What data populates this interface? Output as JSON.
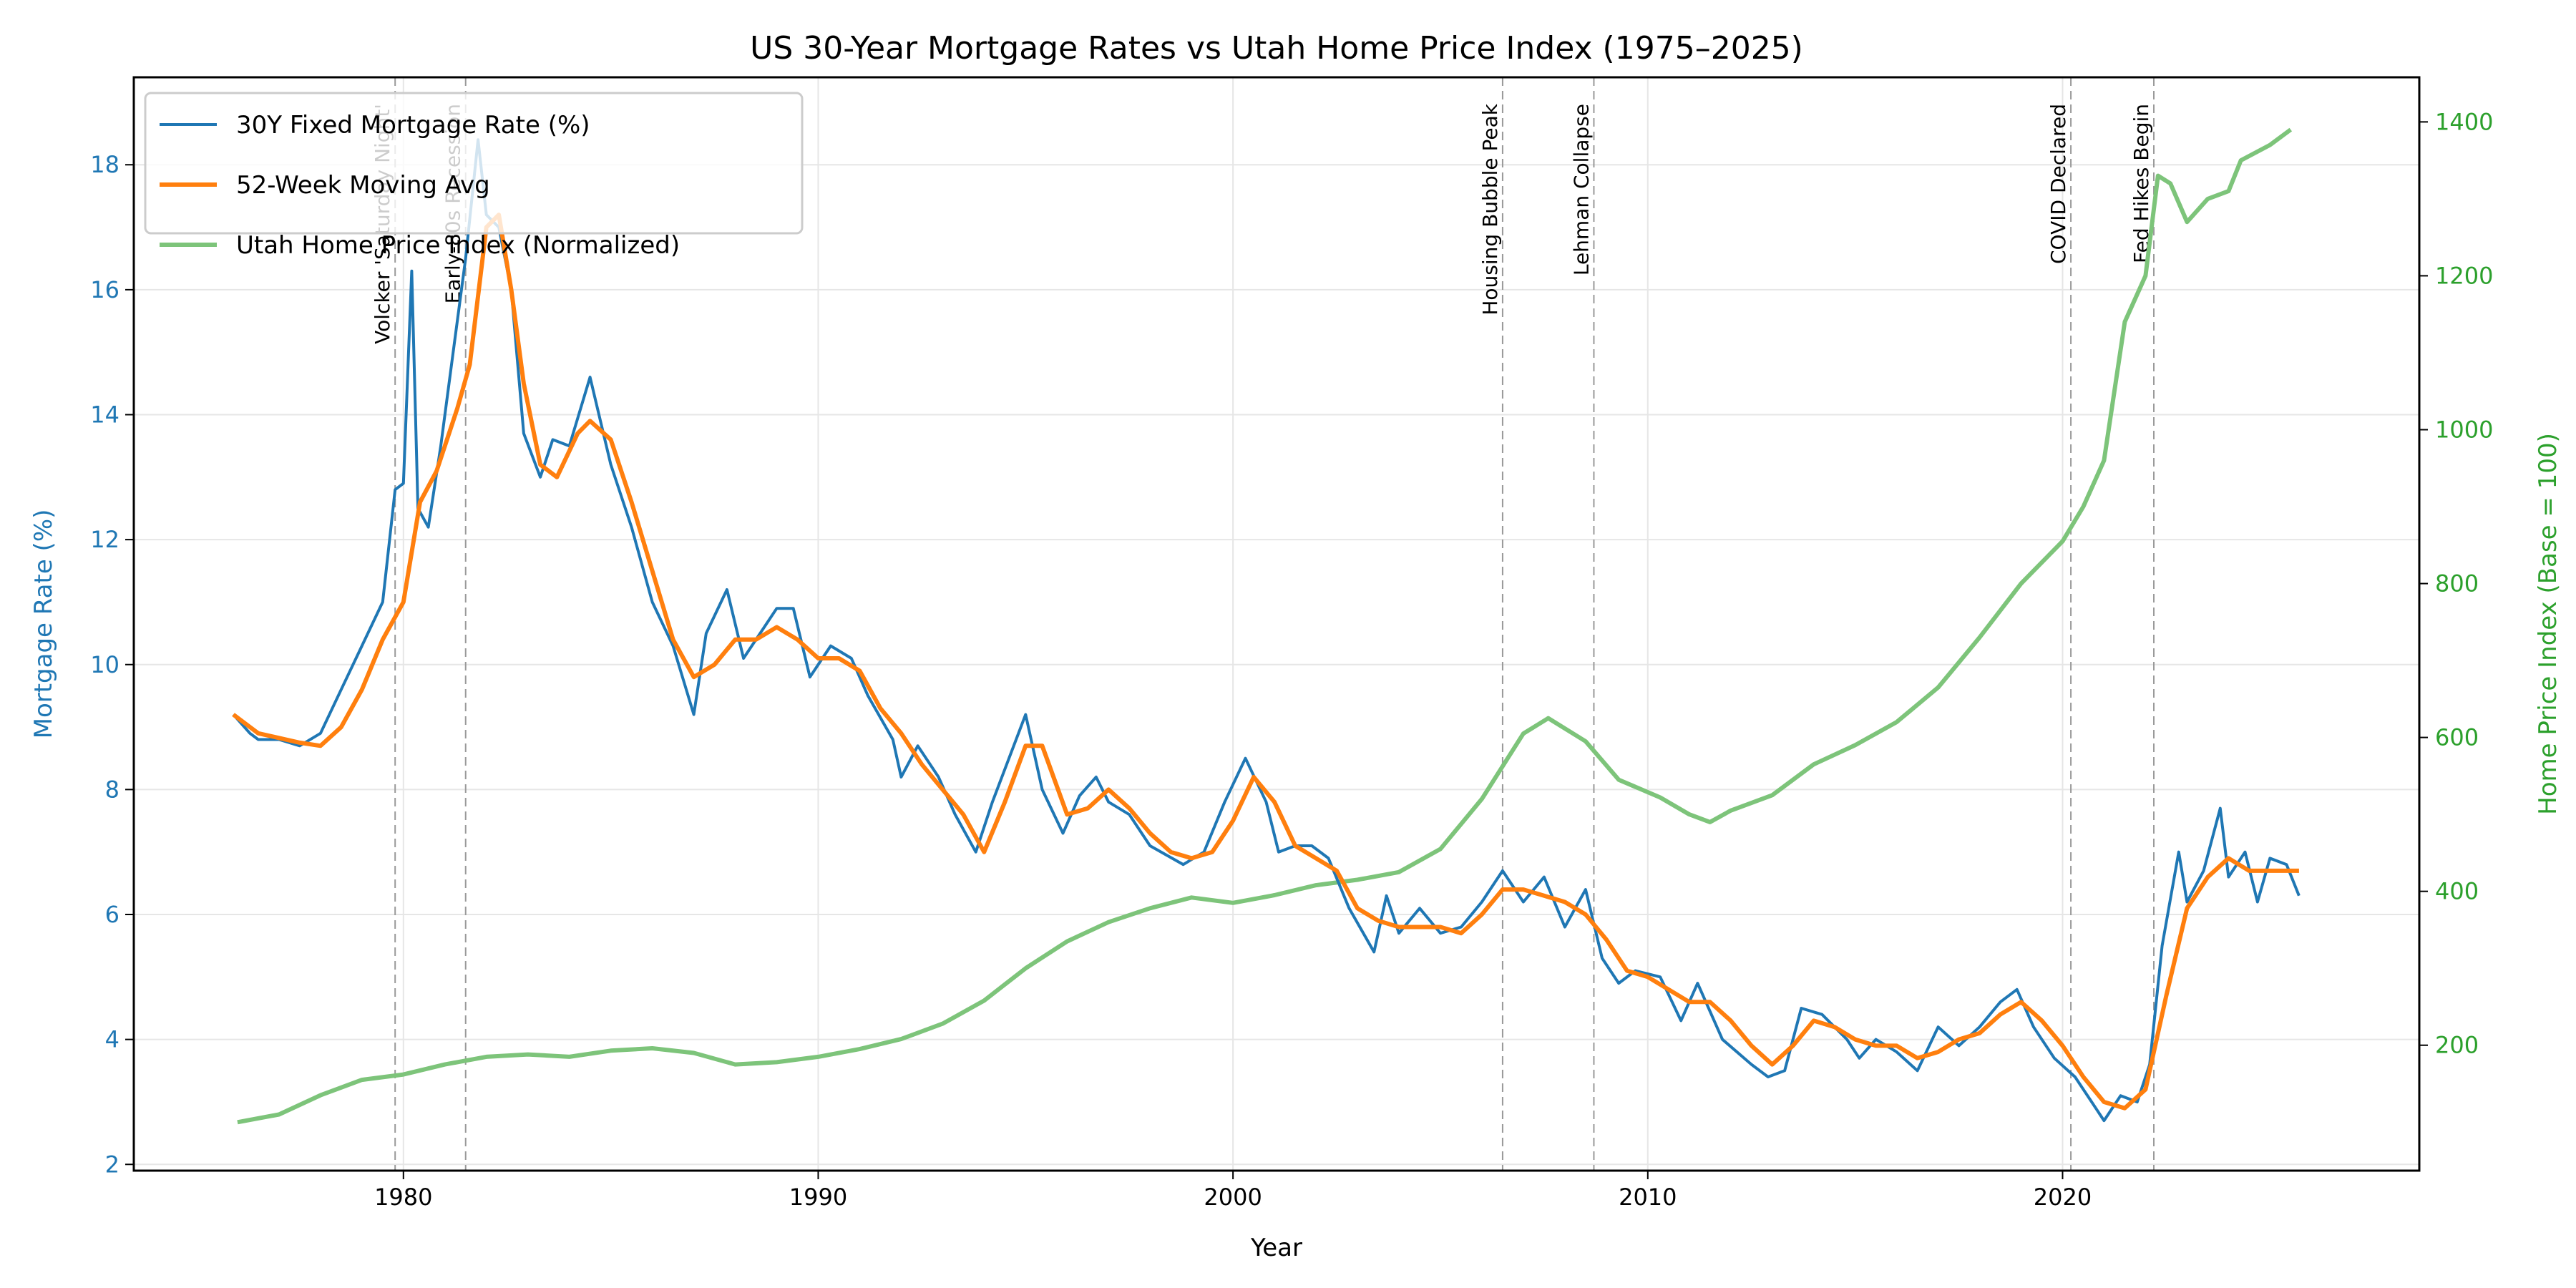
{
  "chart_data": {
    "type": "line",
    "title": "US 30-Year Mortgage Rates vs Utah Home Price Index (1975–2025)",
    "xlabel": "Year",
    "ylabel": "Mortgage Rate (%)",
    "y2label": "Home Price Index (Base = 100)",
    "xlim": [
      1973.5,
      2028.6
    ],
    "ylim": [
      1.9,
      19.4
    ],
    "y2lim": [
      37,
      1458
    ],
    "xticks": [
      1980,
      1990,
      2000,
      2010,
      2020
    ],
    "yticks": [
      2,
      4,
      6,
      8,
      10,
      12,
      14,
      16,
      18
    ],
    "y2ticks": [
      200,
      400,
      600,
      800,
      1000,
      1200,
      1400
    ],
    "grid": true,
    "legend_position": "top-left",
    "colors": {
      "rate": "#1f77b4",
      "ma": "#ff7f0e",
      "hpi": "#7dc47a",
      "left_axis": "#1f77b4",
      "right_axis": "#2ca02c",
      "event": "#999999"
    },
    "series": [
      {
        "name": "30Y Fixed Mortgage Rate (%)",
        "axis": "left",
        "points": [
          [
            1975.9,
            9.2
          ],
          [
            1976.3,
            8.9
          ],
          [
            1976.5,
            8.8
          ],
          [
            1977,
            8.8
          ],
          [
            1977.5,
            8.7
          ],
          [
            1978,
            8.9
          ],
          [
            1978.5,
            9.6
          ],
          [
            1979,
            10.3
          ],
          [
            1979.5,
            11.0
          ],
          [
            1979.8,
            12.8
          ],
          [
            1980.0,
            12.9
          ],
          [
            1980.2,
            16.3
          ],
          [
            1980.35,
            12.5
          ],
          [
            1980.6,
            12.2
          ],
          [
            1980.9,
            13.5
          ],
          [
            1981.2,
            15.0
          ],
          [
            1981.5,
            16.5
          ],
          [
            1981.8,
            18.4
          ],
          [
            1982.0,
            17.2
          ],
          [
            1982.3,
            17.0
          ],
          [
            1982.6,
            16.0
          ],
          [
            1982.9,
            13.7
          ],
          [
            1983.3,
            13.0
          ],
          [
            1983.6,
            13.6
          ],
          [
            1984.0,
            13.5
          ],
          [
            1984.5,
            14.6
          ],
          [
            1985.0,
            13.2
          ],
          [
            1985.5,
            12.2
          ],
          [
            1986.0,
            11.0
          ],
          [
            1986.5,
            10.3
          ],
          [
            1987.0,
            9.2
          ],
          [
            1987.3,
            10.5
          ],
          [
            1987.8,
            11.2
          ],
          [
            1988.2,
            10.1
          ],
          [
            1988.6,
            10.5
          ],
          [
            1989.0,
            10.9
          ],
          [
            1989.4,
            10.9
          ],
          [
            1989.8,
            9.8
          ],
          [
            1990.3,
            10.3
          ],
          [
            1990.8,
            10.1
          ],
          [
            1991.2,
            9.5
          ],
          [
            1991.8,
            8.8
          ],
          [
            1992.0,
            8.2
          ],
          [
            1992.4,
            8.7
          ],
          [
            1992.9,
            8.2
          ],
          [
            1993.3,
            7.6
          ],
          [
            1993.8,
            7.0
          ],
          [
            1994.2,
            7.8
          ],
          [
            1994.6,
            8.5
          ],
          [
            1995.0,
            9.2
          ],
          [
            1995.4,
            8.0
          ],
          [
            1995.9,
            7.3
          ],
          [
            1996.3,
            7.9
          ],
          [
            1996.7,
            8.2
          ],
          [
            1997.0,
            7.8
          ],
          [
            1997.5,
            7.6
          ],
          [
            1998.0,
            7.1
          ],
          [
            1998.8,
            6.8
          ],
          [
            1999.3,
            7.0
          ],
          [
            1999.8,
            7.8
          ],
          [
            2000.3,
            8.5
          ],
          [
            2000.8,
            7.8
          ],
          [
            2001.1,
            7.0
          ],
          [
            2001.5,
            7.1
          ],
          [
            2001.9,
            7.1
          ],
          [
            2002.3,
            6.9
          ],
          [
            2002.8,
            6.1
          ],
          [
            2003.4,
            5.4
          ],
          [
            2003.7,
            6.3
          ],
          [
            2004.0,
            5.7
          ],
          [
            2004.5,
            6.1
          ],
          [
            2005.0,
            5.7
          ],
          [
            2005.5,
            5.8
          ],
          [
            2006.0,
            6.2
          ],
          [
            2006.5,
            6.7
          ],
          [
            2007.0,
            6.2
          ],
          [
            2007.5,
            6.6
          ],
          [
            2008.0,
            5.8
          ],
          [
            2008.5,
            6.4
          ],
          [
            2008.9,
            5.3
          ],
          [
            2009.3,
            4.9
          ],
          [
            2009.7,
            5.1
          ],
          [
            2010.3,
            5.0
          ],
          [
            2010.8,
            4.3
          ],
          [
            2011.2,
            4.9
          ],
          [
            2011.8,
            4.0
          ],
          [
            2012.5,
            3.6
          ],
          [
            2012.9,
            3.4
          ],
          [
            2013.3,
            3.5
          ],
          [
            2013.7,
            4.5
          ],
          [
            2014.2,
            4.4
          ],
          [
            2014.8,
            4.0
          ],
          [
            2015.1,
            3.7
          ],
          [
            2015.5,
            4.0
          ],
          [
            2016.0,
            3.8
          ],
          [
            2016.5,
            3.5
          ],
          [
            2017.0,
            4.2
          ],
          [
            2017.5,
            3.9
          ],
          [
            2018.0,
            4.2
          ],
          [
            2018.5,
            4.6
          ],
          [
            2018.9,
            4.8
          ],
          [
            2019.3,
            4.2
          ],
          [
            2019.8,
            3.7
          ],
          [
            2020.3,
            3.4
          ],
          [
            2020.8,
            2.9
          ],
          [
            2021.0,
            2.7
          ],
          [
            2021.4,
            3.1
          ],
          [
            2021.8,
            3.0
          ],
          [
            2022.1,
            3.6
          ],
          [
            2022.4,
            5.5
          ],
          [
            2022.8,
            7.0
          ],
          [
            2023.0,
            6.2
          ],
          [
            2023.4,
            6.7
          ],
          [
            2023.8,
            7.7
          ],
          [
            2024.0,
            6.6
          ],
          [
            2024.4,
            7.0
          ],
          [
            2024.7,
            6.2
          ],
          [
            2025.0,
            6.9
          ],
          [
            2025.4,
            6.8
          ],
          [
            2025.7,
            6.3
          ]
        ]
      },
      {
        "name": "52-Week Moving Avg",
        "axis": "left",
        "points": [
          [
            1975.9,
            9.2
          ],
          [
            1976.5,
            8.9
          ],
          [
            1977.5,
            8.75
          ],
          [
            1978.0,
            8.7
          ],
          [
            1978.5,
            9.0
          ],
          [
            1979.0,
            9.6
          ],
          [
            1979.5,
            10.4
          ],
          [
            1980.0,
            11.0
          ],
          [
            1980.4,
            12.6
          ],
          [
            1980.8,
            13.1
          ],
          [
            1981.3,
            14.1
          ],
          [
            1981.6,
            14.8
          ],
          [
            1982.0,
            17.0
          ],
          [
            1982.3,
            17.2
          ],
          [
            1982.6,
            16.0
          ],
          [
            1982.9,
            14.5
          ],
          [
            1983.3,
            13.2
          ],
          [
            1983.7,
            13.0
          ],
          [
            1984.2,
            13.7
          ],
          [
            1984.5,
            13.9
          ],
          [
            1985.0,
            13.6
          ],
          [
            1985.5,
            12.6
          ],
          [
            1986.0,
            11.5
          ],
          [
            1986.5,
            10.4
          ],
          [
            1987.0,
            9.8
          ],
          [
            1987.5,
            10.0
          ],
          [
            1988.0,
            10.4
          ],
          [
            1988.5,
            10.4
          ],
          [
            1989.0,
            10.6
          ],
          [
            1989.5,
            10.4
          ],
          [
            1990.0,
            10.1
          ],
          [
            1990.5,
            10.1
          ],
          [
            1991.0,
            9.9
          ],
          [
            1991.5,
            9.3
          ],
          [
            1992.0,
            8.9
          ],
          [
            1992.5,
            8.4
          ],
          [
            1993.0,
            8.0
          ],
          [
            1993.5,
            7.6
          ],
          [
            1994.0,
            7.0
          ],
          [
            1994.5,
            7.8
          ],
          [
            1995.0,
            8.7
          ],
          [
            1995.4,
            8.7
          ],
          [
            1996.0,
            7.6
          ],
          [
            1996.5,
            7.7
          ],
          [
            1997.0,
            8.0
          ],
          [
            1997.5,
            7.7
          ],
          [
            1998.0,
            7.3
          ],
          [
            1998.5,
            7.0
          ],
          [
            1999.0,
            6.9
          ],
          [
            1999.5,
            7.0
          ],
          [
            2000.0,
            7.5
          ],
          [
            2000.5,
            8.2
          ],
          [
            2001.0,
            7.8
          ],
          [
            2001.5,
            7.1
          ],
          [
            2002.0,
            6.9
          ],
          [
            2002.5,
            6.7
          ],
          [
            2003.0,
            6.1
          ],
          [
            2003.5,
            5.9
          ],
          [
            2004.0,
            5.8
          ],
          [
            2004.5,
            5.8
          ],
          [
            2005.0,
            5.8
          ],
          [
            2005.5,
            5.7
          ],
          [
            2006.0,
            6.0
          ],
          [
            2006.5,
            6.4
          ],
          [
            2007.0,
            6.4
          ],
          [
            2007.5,
            6.3
          ],
          [
            2008.0,
            6.2
          ],
          [
            2008.5,
            6.0
          ],
          [
            2009.0,
            5.6
          ],
          [
            2009.5,
            5.1
          ],
          [
            2010.0,
            5.0
          ],
          [
            2010.5,
            4.8
          ],
          [
            2011.0,
            4.6
          ],
          [
            2011.5,
            4.6
          ],
          [
            2012.0,
            4.3
          ],
          [
            2012.5,
            3.9
          ],
          [
            2013.0,
            3.6
          ],
          [
            2013.5,
            3.9
          ],
          [
            2014.0,
            4.3
          ],
          [
            2014.5,
            4.2
          ],
          [
            2015.0,
            4.0
          ],
          [
            2015.5,
            3.9
          ],
          [
            2016.0,
            3.9
          ],
          [
            2016.5,
            3.7
          ],
          [
            2017.0,
            3.8
          ],
          [
            2017.5,
            4.0
          ],
          [
            2018.0,
            4.1
          ],
          [
            2018.5,
            4.4
          ],
          [
            2019.0,
            4.6
          ],
          [
            2019.5,
            4.3
          ],
          [
            2020.0,
            3.9
          ],
          [
            2020.5,
            3.4
          ],
          [
            2021.0,
            3.0
          ],
          [
            2021.5,
            2.9
          ],
          [
            2022.0,
            3.2
          ],
          [
            2022.5,
            4.7
          ],
          [
            2023.0,
            6.1
          ],
          [
            2023.5,
            6.6
          ],
          [
            2024.0,
            6.9
          ],
          [
            2024.5,
            6.7
          ],
          [
            2025.0,
            6.7
          ],
          [
            2025.7,
            6.7
          ]
        ]
      },
      {
        "name": "Utah Home Price Index (Normalized)",
        "axis": "right",
        "points": [
          [
            1976,
            100
          ],
          [
            1977,
            110
          ],
          [
            1978,
            135
          ],
          [
            1979,
            155
          ],
          [
            1980,
            162
          ],
          [
            1981,
            175
          ],
          [
            1982,
            185
          ],
          [
            1983,
            188
          ],
          [
            1984,
            185
          ],
          [
            1985,
            193
          ],
          [
            1986,
            196
          ],
          [
            1987,
            190
          ],
          [
            1988,
            175
          ],
          [
            1989,
            178
          ],
          [
            1990,
            185
          ],
          [
            1991,
            195
          ],
          [
            1992,
            208
          ],
          [
            1993,
            228
          ],
          [
            1994,
            258
          ],
          [
            1995,
            300
          ],
          [
            1996,
            335
          ],
          [
            1997,
            360
          ],
          [
            1998,
            378
          ],
          [
            1999,
            392
          ],
          [
            2000,
            385
          ],
          [
            2001,
            395
          ],
          [
            2002,
            408
          ],
          [
            2003,
            415
          ],
          [
            2004,
            425
          ],
          [
            2005,
            455
          ],
          [
            2006,
            520
          ],
          [
            2007,
            605
          ],
          [
            2007.6,
            625
          ],
          [
            2008.5,
            595
          ],
          [
            2009.3,
            545
          ],
          [
            2010.3,
            522
          ],
          [
            2011,
            500
          ],
          [
            2011.5,
            490
          ],
          [
            2012,
            505
          ],
          [
            2013,
            525
          ],
          [
            2014,
            565
          ],
          [
            2015,
            590
          ],
          [
            2016,
            620
          ],
          [
            2017,
            665
          ],
          [
            2018,
            730
          ],
          [
            2019,
            800
          ],
          [
            2020,
            855
          ],
          [
            2020.5,
            900
          ],
          [
            2021,
            960
          ],
          [
            2021.5,
            1140
          ],
          [
            2022.0,
            1200
          ],
          [
            2022.3,
            1330
          ],
          [
            2022.6,
            1320
          ],
          [
            2023.0,
            1270
          ],
          [
            2023.5,
            1300
          ],
          [
            2024.0,
            1310
          ],
          [
            2024.3,
            1350
          ],
          [
            2025.0,
            1370
          ],
          [
            2025.5,
            1390
          ]
        ]
      }
    ],
    "events": [
      {
        "x": 1979.8,
        "label": "Volcker 'Saturday Night'"
      },
      {
        "x": 1981.5,
        "label": "Early-80s Recession"
      },
      {
        "x": 2006.5,
        "label": "Housing Bubble Peak"
      },
      {
        "x": 2008.7,
        "label": "Lehman Collapse"
      },
      {
        "x": 2020.2,
        "label": "COVID Declared"
      },
      {
        "x": 2022.2,
        "label": "Fed Hikes Begin"
      }
    ]
  }
}
